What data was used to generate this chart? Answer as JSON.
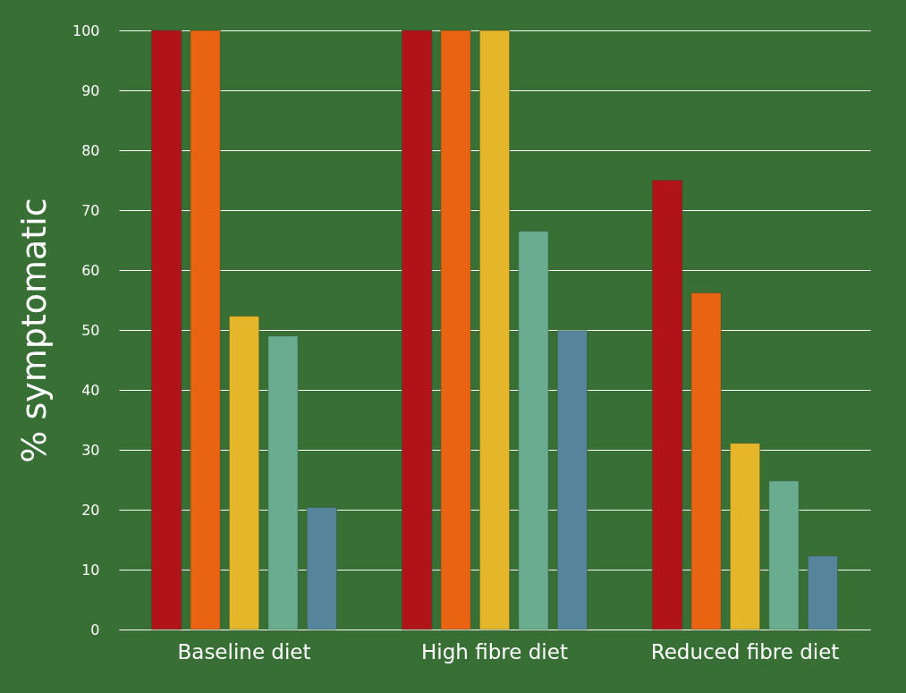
{
  "chart_data": {
    "type": "bar",
    "ylabel": "% symptomatic",
    "categories": [
      "Baseline diet",
      "High fibre diet",
      "Reduced fibre diet"
    ],
    "series": [
      {
        "color": "#b01418",
        "values": [
          100,
          100,
          75
        ]
      },
      {
        "color": "#e86412",
        "values": [
          100,
          100,
          56.2
        ]
      },
      {
        "color": "#e5b52a",
        "values": [
          52.3,
          100,
          31.1
        ]
      },
      {
        "color": "#6aac8f",
        "values": [
          49,
          66.5,
          24.8
        ]
      },
      {
        "color": "#55849b",
        "values": [
          20.4,
          49.9,
          12.3
        ]
      }
    ],
    "ylim": [
      0,
      100
    ],
    "yticks": [
      0,
      10,
      20,
      30,
      40,
      50,
      60,
      70,
      80,
      90,
      100
    ],
    "grid": "y"
  }
}
